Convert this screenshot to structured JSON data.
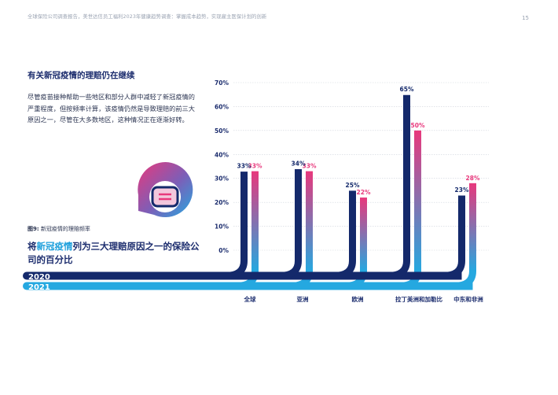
{
  "header": {
    "doc_title": "全球保险公司调查报告，美世达信员工福利2023年健康趋势调查：掌握成本趋势，实现雇主医保计划的创新",
    "page_number": "15"
  },
  "section": {
    "title": "有关新冠疫情的理赔仍在继续",
    "body": "尽管疫苗接种帮助一些地区和部分人群中减轻了新冠疫情的严重程度，但按频率计算，该疫情仍然是导致理赔的前三大原因之一，尽管在大多数地区，这种情况正在逐渐好转。"
  },
  "figure": {
    "label_prefix": "图9:",
    "label_text": " 新冠疫情的理赔频率",
    "headline_pre": "将",
    "headline_highlight": "新冠疫情",
    "headline_post": "列为三大理赔原因之一的保险公司的百分比"
  },
  "icon": "virus-mask-icon",
  "colors": {
    "series_2020": "#14296b",
    "series_2021": "#25a8e0",
    "gradient_pink": "#e8387c",
    "title_navy": "#1c2d6e",
    "highlight_blue": "#1ea0dc",
    "axis_label": "#1c2d6e"
  },
  "chart_data": {
    "type": "bar",
    "categories": [
      "全球",
      "亚洲",
      "欧洲",
      "拉丁美洲和加勒比",
      "中东和非洲"
    ],
    "series": [
      {
        "name": "2020",
        "values": [
          33,
          34,
          25,
          65,
          23
        ],
        "labels": [
          "33%",
          "34%",
          "25%",
          "65%",
          "23%"
        ]
      },
      {
        "name": "2021",
        "values": [
          33,
          33,
          22,
          50,
          28
        ],
        "labels": [
          "33%",
          "33%",
          "22%",
          "50%",
          "28%"
        ]
      }
    ],
    "ylim": [
      0,
      70
    ],
    "yticks": [
      "0%",
      "10%",
      "20%",
      "30%",
      "40%",
      "50%",
      "60%",
      "70%"
    ],
    "grid": true,
    "legend": "bottom-left"
  }
}
